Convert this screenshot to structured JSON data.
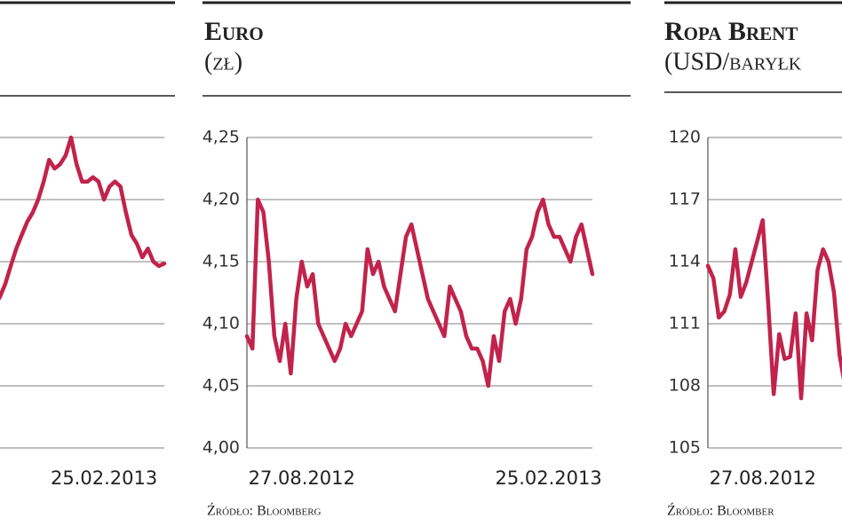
{
  "chart_data": [
    {
      "type": "line",
      "color": "#c1234c",
      "categories": [
        null,
        null,
        null,
        null,
        null,
        null,
        null,
        null,
        null,
        null,
        null,
        null,
        null,
        null,
        null,
        null,
        null,
        null,
        null,
        null,
        "25.02.2013",
        null,
        null,
        null,
        null,
        null,
        null,
        null,
        null,
        null,
        null,
        null
      ],
      "values": [
        2.29,
        2.43,
        2.64,
        2.93,
        3.21,
        3.43,
        3.64,
        3.79,
        4.0,
        4.29,
        4.64,
        4.5,
        4.57,
        4.71,
        5.0,
        4.57,
        4.29,
        4.29,
        4.36,
        4.29,
        4.0,
        4.21,
        4.29,
        4.21,
        3.79,
        3.43,
        3.29,
        3.07,
        3.21,
        3.0,
        2.93,
        2.97
      ],
      "ylim": [
        0,
        5
      ],
      "yticks": [
        0,
        1,
        2,
        3,
        4,
        5
      ],
      "ytick_labels": false,
      "grid": true
    },
    {
      "type": "line",
      "title": "Euro",
      "subtitle": "(zł)",
      "color": "#c1234c",
      "categories": [
        null,
        null,
        null,
        null,
        null,
        null,
        null,
        null,
        null,
        null,
        "27.08.2012",
        null,
        null,
        null,
        null,
        null,
        null,
        null,
        null,
        null,
        null,
        null,
        null,
        null,
        null,
        null,
        null,
        null,
        null,
        null,
        null,
        null,
        null,
        null,
        null,
        null,
        null,
        null,
        null,
        null,
        null,
        null,
        null,
        null,
        null,
        null,
        null,
        null,
        null,
        null,
        null,
        null,
        null,
        null,
        null,
        "25.02.2013",
        null,
        null,
        null,
        null,
        null,
        null,
        null,
        null
      ],
      "values": [
        4.09,
        4.08,
        4.2,
        4.19,
        4.15,
        4.09,
        4.07,
        4.1,
        4.06,
        4.12,
        4.15,
        4.13,
        4.14,
        4.1,
        4.09,
        4.08,
        4.07,
        4.08,
        4.1,
        4.09,
        4.1,
        4.11,
        4.16,
        4.14,
        4.15,
        4.13,
        4.12,
        4.11,
        4.14,
        4.17,
        4.18,
        4.16,
        4.14,
        4.12,
        4.11,
        4.1,
        4.09,
        4.13,
        4.12,
        4.11,
        4.09,
        4.08,
        4.08,
        4.07,
        4.05,
        4.09,
        4.07,
        4.11,
        4.12,
        4.1,
        4.12,
        4.16,
        4.17,
        4.19,
        4.2,
        4.18,
        4.17,
        4.17,
        4.16,
        4.15,
        4.17,
        4.18,
        4.16,
        4.14
      ],
      "ylim": [
        4.0,
        4.25
      ],
      "yticks": [
        {
          "value": 4.0,
          "label": "4,00"
        },
        {
          "value": 4.05,
          "label": "4,05"
        },
        {
          "value": 4.1,
          "label": "4,10"
        },
        {
          "value": 4.15,
          "label": "4,15"
        },
        {
          "value": 4.2,
          "label": "4,20"
        },
        {
          "value": 4.25,
          "label": "4,25"
        }
      ],
      "ytick_labels": true,
      "grid": true,
      "source": "Źródło: Bloomberg"
    },
    {
      "type": "line",
      "title": "Ropa Brent",
      "subtitle": "(USD/baryłk",
      "color": "#c1234c",
      "categories": [
        null,
        null,
        null,
        null,
        null,
        null,
        null,
        null,
        null,
        null,
        "27.08.2012",
        null,
        null,
        null,
        null,
        null,
        null,
        null,
        null,
        null,
        null,
        null,
        null,
        null,
        null,
        null
      ],
      "values": [
        113.8,
        113.2,
        111.3,
        111.6,
        112.4,
        114.6,
        112.3,
        113.0,
        114.0,
        115.0,
        116.0,
        112.0,
        107.6,
        110.5,
        109.3,
        109.4,
        111.5,
        107.4,
        111.5,
        110.2,
        113.6,
        114.6,
        114.0,
        112.5,
        109.5,
        108.0
      ],
      "ylim": [
        105,
        120
      ],
      "yticks": [
        105,
        108,
        111,
        114,
        117,
        120
      ],
      "ytick_labels": true,
      "grid": true,
      "source": "Źródło: Bloomber"
    }
  ]
}
